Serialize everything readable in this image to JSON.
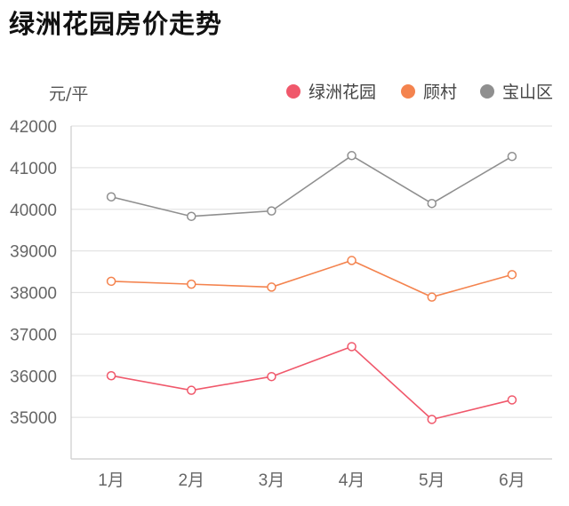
{
  "chart_data": {
    "type": "line",
    "title": "绿洲花园房价走势",
    "ylabel": "元/平",
    "xlabel": "",
    "categories": [
      "1月",
      "2月",
      "3月",
      "4月",
      "5月",
      "6月"
    ],
    "ylim": [
      34000,
      42000
    ],
    "yticks": [
      35000,
      36000,
      37000,
      38000,
      39000,
      40000,
      41000,
      42000
    ],
    "grid": true,
    "legend_position": "top-right",
    "series": [
      {
        "name": "绿洲花园",
        "color": "#f0586b",
        "values": [
          36000,
          35650,
          35980,
          36700,
          34950,
          35420
        ]
      },
      {
        "name": "顾村",
        "color": "#f4834e",
        "values": [
          38270,
          38200,
          38130,
          38770,
          37890,
          38430
        ]
      },
      {
        "name": "宝山区",
        "color": "#8f8f8f",
        "values": [
          40300,
          39830,
          39960,
          41290,
          40140,
          41270
        ]
      }
    ]
  }
}
